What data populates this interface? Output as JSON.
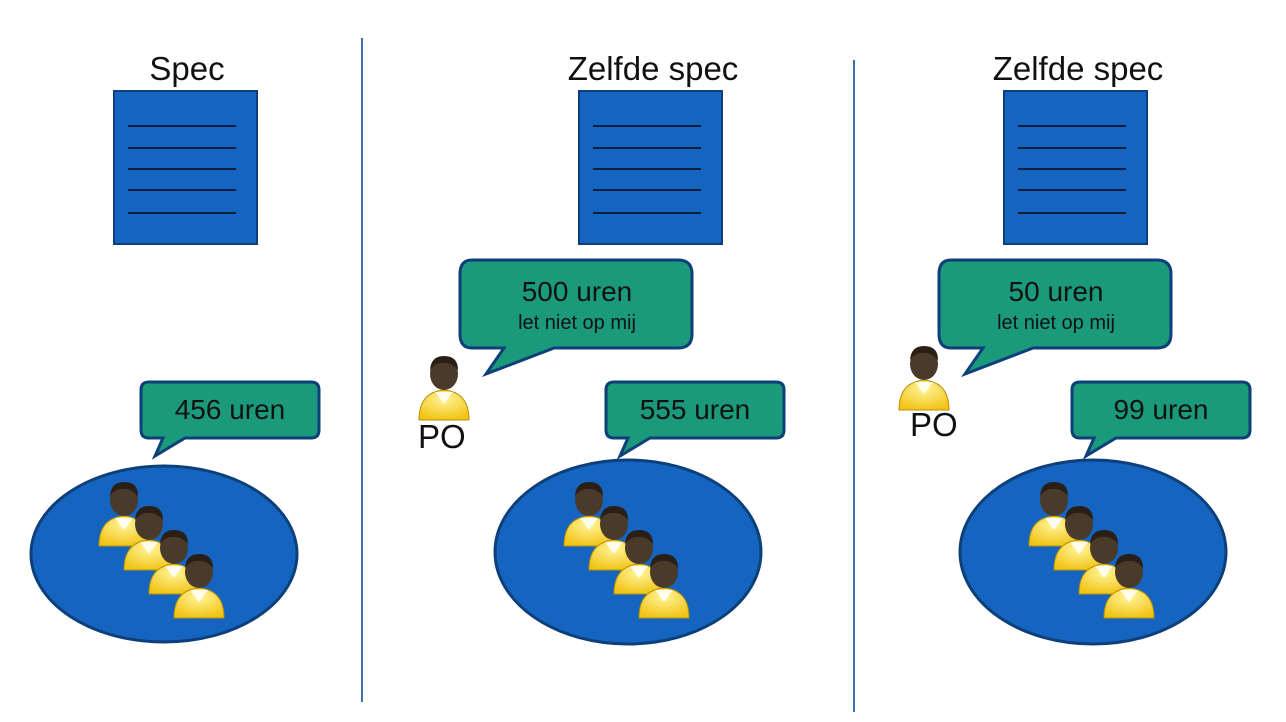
{
  "colors": {
    "doc_fill": "#1565c0",
    "bubble_fill": "#1a9a7a",
    "bubble_stroke": "#0d3f7a",
    "ellipse_fill": "#1565c0",
    "divider": "#3a6fb0",
    "person_body": "#f2c418",
    "person_head": "#4a3a2a"
  },
  "panels": [
    {
      "title": "Spec",
      "po_bubble": null,
      "po_label": null,
      "team_estimate": "456 uren"
    },
    {
      "title": "Zelfde spec",
      "po_bubble": {
        "hours": "500 uren",
        "note": "let niet op mij"
      },
      "po_label": "PO",
      "team_estimate": "555 uren"
    },
    {
      "title": "Zelfde spec",
      "po_bubble": {
        "hours": "50 uren",
        "note": "let niet op mij"
      },
      "po_label": "PO",
      "team_estimate": "99 uren"
    }
  ]
}
